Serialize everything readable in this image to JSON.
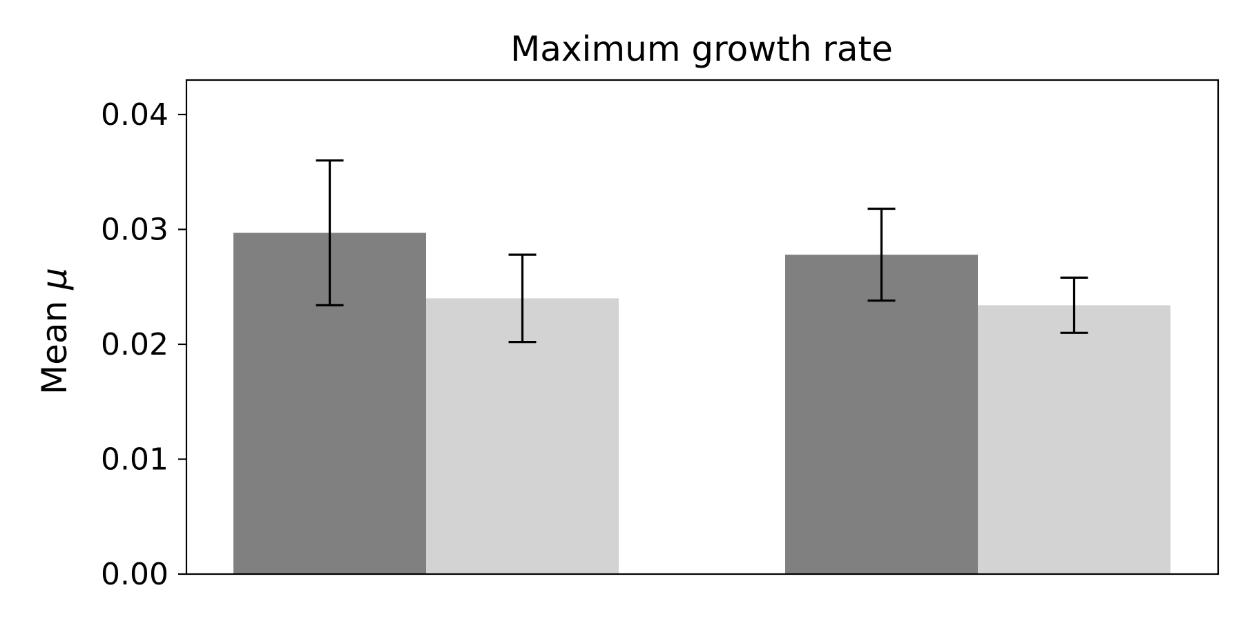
{
  "chart_data": {
    "type": "bar",
    "title": "Maximum growth rate",
    "xlabel": "",
    "ylabel": "Mean",
    "ylabel_symbol": "μ",
    "ylim": [
      0,
      0.043
    ],
    "yticks": [
      0.0,
      0.01,
      0.02,
      0.03,
      0.04
    ],
    "ytick_labels": [
      "0.00",
      "0.01",
      "0.02",
      "0.03",
      "0.04"
    ],
    "groups": 2,
    "xticks_visible": false,
    "grid": false,
    "legend": "none",
    "series": [
      {
        "color": "#808080",
        "values": [
          0.0297,
          0.0278
        ],
        "errors": [
          0.0063,
          0.004
        ]
      },
      {
        "color": "#d3d3d3",
        "values": [
          0.024,
          0.0234
        ],
        "errors": [
          0.0038,
          0.0024
        ]
      }
    ]
  }
}
